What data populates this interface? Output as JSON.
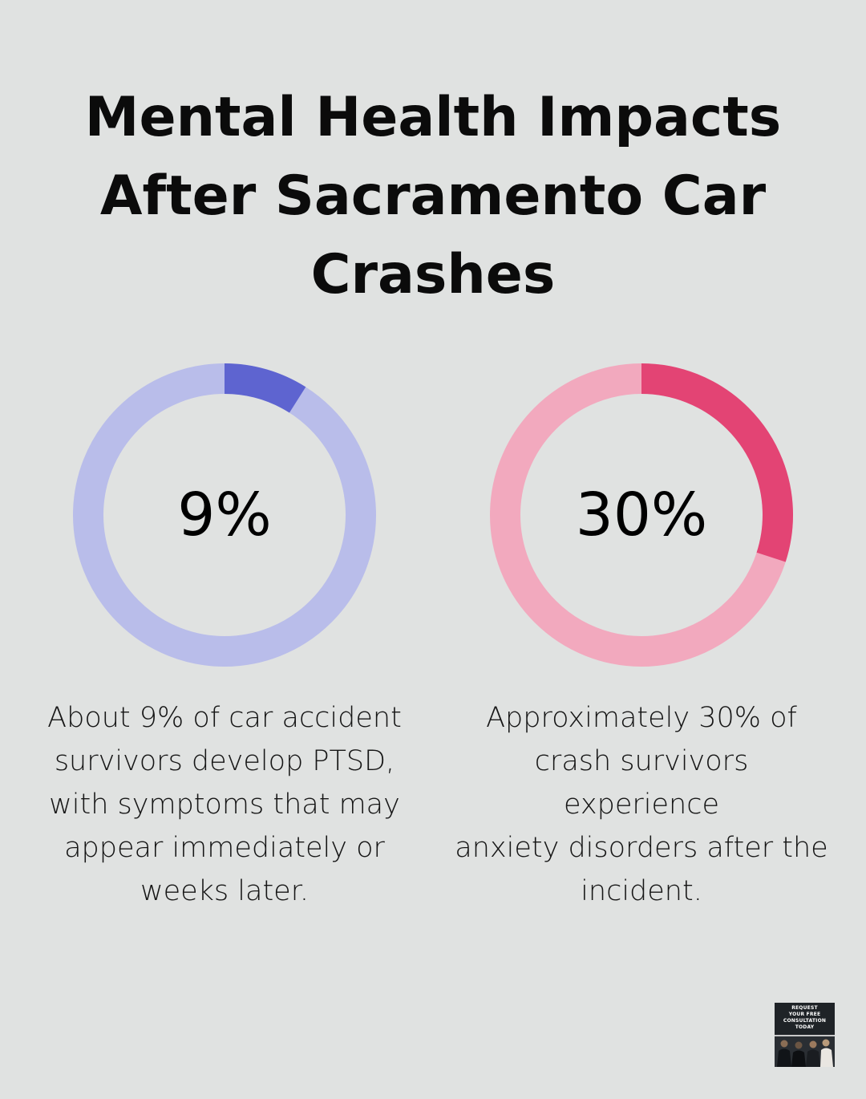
{
  "title": {
    "line1": "Mental Health Impacts",
    "line2": "After Sacramento Car",
    "line3": "Crashes"
  },
  "chart_data": [
    {
      "type": "pie",
      "title": "",
      "value_label": "9%",
      "values": [
        9,
        91
      ],
      "colors": [
        "#5e64d0",
        "#b9bdea"
      ],
      "caption": {
        "line1": "About 9% of car accident",
        "line2": "survivors develop PTSD,",
        "line3": "with symptoms that may",
        "line4": "appear immediately or",
        "line5": "weeks later."
      }
    },
    {
      "type": "pie",
      "title": "",
      "value_label": "30%",
      "values": [
        30,
        70
      ],
      "colors": [
        "#e34474",
        "#f2a9be"
      ],
      "caption": {
        "line1": "Approximately 30% of",
        "line2": "crash survivors experience",
        "line3": "anxiety disorders after the",
        "line4": "incident."
      }
    }
  ],
  "cta": {
    "line1": "REQUEST",
    "line2": "YOUR FREE",
    "line3": "CONSULTATION",
    "line4": "TODAY"
  }
}
